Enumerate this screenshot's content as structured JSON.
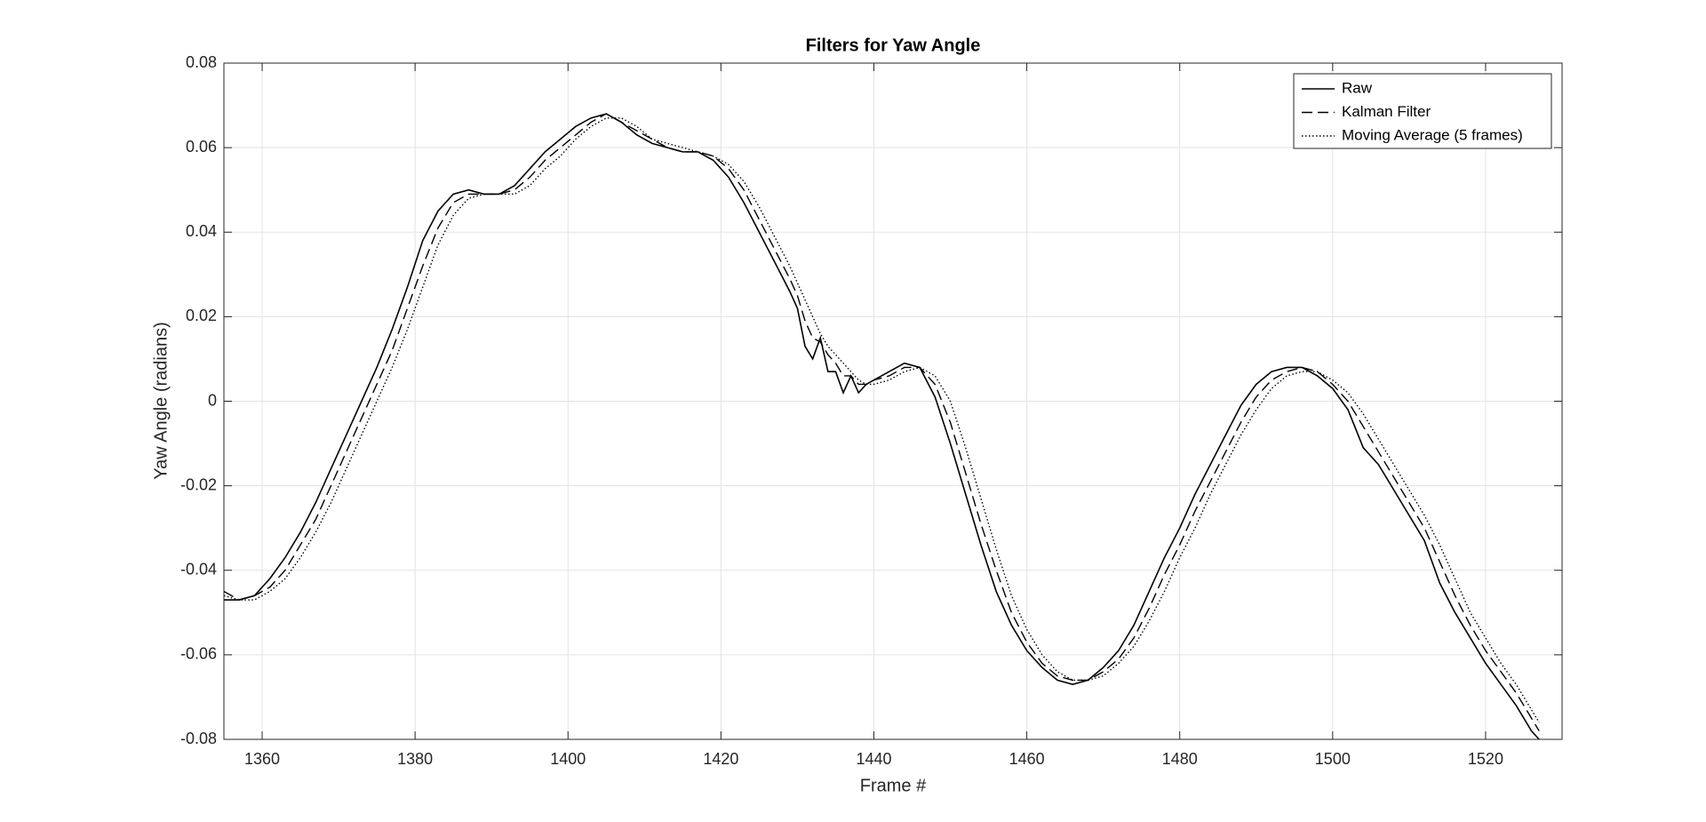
{
  "chart_data": {
    "type": "line",
    "title": "Filters for Yaw Angle",
    "x_label": "Frame #",
    "y_label": "Yaw Angle (radians)",
    "xlim": [
      1355,
      1530
    ],
    "ylim": [
      -0.08,
      0.08
    ],
    "xticks": [
      1360,
      1380,
      1400,
      1420,
      1440,
      1460,
      1480,
      1500,
      1520
    ],
    "yticks": [
      -0.08,
      -0.06,
      -0.04,
      -0.02,
      0,
      0.02,
      0.04,
      0.06,
      0.08
    ],
    "grid": true,
    "legend_position": "upper right",
    "x": [
      1355,
      1357,
      1359,
      1361,
      1363,
      1365,
      1367,
      1369,
      1371,
      1373,
      1375,
      1377,
      1379,
      1381,
      1383,
      1385,
      1387,
      1389,
      1391,
      1393,
      1395,
      1397,
      1399,
      1401,
      1403,
      1405,
      1407,
      1409,
      1411,
      1413,
      1415,
      1417,
      1419,
      1421,
      1423,
      1425,
      1427,
      1429,
      1430,
      1431,
      1432,
      1433,
      1434,
      1435,
      1436,
      1437,
      1438,
      1439,
      1440,
      1442,
      1444,
      1446,
      1448,
      1450,
      1452,
      1454,
      1456,
      1458,
      1460,
      1462,
      1464,
      1466,
      1468,
      1470,
      1472,
      1474,
      1476,
      1478,
      1480,
      1482,
      1484,
      1486,
      1488,
      1490,
      1492,
      1494,
      1496,
      1498,
      1500,
      1502,
      1504,
      1506,
      1508,
      1510,
      1512,
      1514,
      1516,
      1518,
      1520,
      1522,
      1524,
      1526,
      1527
    ],
    "series": [
      {
        "name": "Raw",
        "color": "#000000",
        "style": "solid",
        "values": [
          -0.047,
          -0.047,
          -0.046,
          -0.042,
          -0.037,
          -0.031,
          -0.024,
          -0.016,
          -0.008,
          0.0,
          0.008,
          0.017,
          0.027,
          0.038,
          0.045,
          0.049,
          0.05,
          0.049,
          0.049,
          0.051,
          0.055,
          0.059,
          0.062,
          0.065,
          0.067,
          0.068,
          0.066,
          0.063,
          0.061,
          0.06,
          0.059,
          0.059,
          0.057,
          0.053,
          0.047,
          0.04,
          0.033,
          0.026,
          0.022,
          0.013,
          0.01,
          0.015,
          0.007,
          0.007,
          0.002,
          0.006,
          0.002,
          0.004,
          0.005,
          0.007,
          0.009,
          0.008,
          0.001,
          -0.01,
          -0.022,
          -0.034,
          -0.045,
          -0.053,
          -0.059,
          -0.063,
          -0.066,
          -0.067,
          -0.066,
          -0.063,
          -0.059,
          -0.053,
          -0.045,
          -0.037,
          -0.03,
          -0.022,
          -0.015,
          -0.008,
          -0.001,
          0.004,
          0.007,
          0.008,
          0.008,
          0.006,
          0.003,
          -0.002,
          -0.011,
          -0.015,
          -0.021,
          -0.027,
          -0.033,
          -0.043,
          -0.05,
          -0.056,
          -0.062,
          -0.067,
          -0.072,
          -0.078,
          -0.08
        ]
      },
      {
        "name": "Kalman Filter",
        "color": "#000000",
        "style": "dashed",
        "values": [
          -0.045,
          -0.047,
          -0.046,
          -0.044,
          -0.04,
          -0.034,
          -0.028,
          -0.02,
          -0.012,
          -0.004,
          0.004,
          0.012,
          0.022,
          0.032,
          0.041,
          0.047,
          0.049,
          0.049,
          0.049,
          0.05,
          0.053,
          0.057,
          0.06,
          0.063,
          0.066,
          0.068,
          0.066,
          0.064,
          0.062,
          0.06,
          0.059,
          0.059,
          0.058,
          0.055,
          0.05,
          0.043,
          0.036,
          0.029,
          0.025,
          0.019,
          0.015,
          0.014,
          0.011,
          0.009,
          0.006,
          0.006,
          0.004,
          0.004,
          0.005,
          0.006,
          0.008,
          0.008,
          0.004,
          -0.005,
          -0.017,
          -0.029,
          -0.04,
          -0.05,
          -0.057,
          -0.062,
          -0.065,
          -0.066,
          -0.066,
          -0.064,
          -0.061,
          -0.056,
          -0.049,
          -0.041,
          -0.034,
          -0.026,
          -0.019,
          -0.012,
          -0.005,
          0.001,
          0.005,
          0.007,
          0.008,
          0.007,
          0.004,
          0.0,
          -0.006,
          -0.012,
          -0.018,
          -0.024,
          -0.03,
          -0.038,
          -0.046,
          -0.053,
          -0.059,
          -0.064,
          -0.069,
          -0.075,
          -0.078
        ]
      },
      {
        "name": "Moving Average (5 frames)",
        "color": "#000000",
        "style": "dotted",
        "values": [
          -0.046,
          -0.047,
          -0.047,
          -0.045,
          -0.042,
          -0.037,
          -0.031,
          -0.024,
          -0.016,
          -0.008,
          0.0,
          0.008,
          0.017,
          0.027,
          0.037,
          0.044,
          0.048,
          0.049,
          0.049,
          0.049,
          0.051,
          0.055,
          0.058,
          0.062,
          0.065,
          0.067,
          0.067,
          0.065,
          0.062,
          0.061,
          0.06,
          0.059,
          0.058,
          0.056,
          0.052,
          0.046,
          0.039,
          0.032,
          0.028,
          0.024,
          0.02,
          0.016,
          0.013,
          0.011,
          0.009,
          0.007,
          0.005,
          0.004,
          0.004,
          0.005,
          0.007,
          0.008,
          0.006,
          0.0,
          -0.011,
          -0.023,
          -0.035,
          -0.046,
          -0.054,
          -0.06,
          -0.064,
          -0.066,
          -0.066,
          -0.065,
          -0.062,
          -0.058,
          -0.052,
          -0.045,
          -0.037,
          -0.03,
          -0.022,
          -0.015,
          -0.008,
          -0.002,
          0.003,
          0.006,
          0.007,
          0.007,
          0.005,
          0.002,
          -0.003,
          -0.009,
          -0.015,
          -0.021,
          -0.027,
          -0.034,
          -0.042,
          -0.05,
          -0.056,
          -0.062,
          -0.067,
          -0.073,
          -0.076
        ]
      }
    ]
  }
}
